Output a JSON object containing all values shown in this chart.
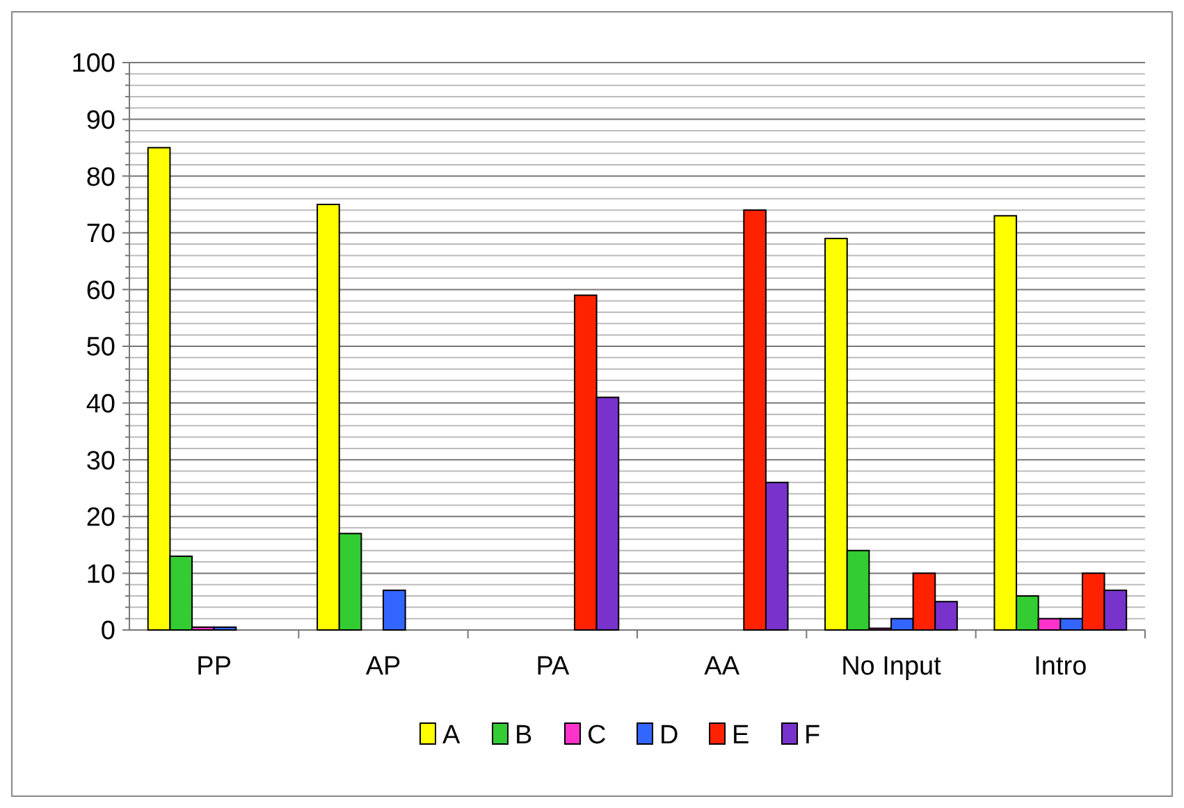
{
  "chart_data": {
    "type": "bar",
    "categories": [
      "PP",
      "AP",
      "PA",
      "AA",
      "No Input",
      "Intro"
    ],
    "series": [
      {
        "name": "A",
        "color": "#ffff00",
        "values": [
          85,
          75,
          0,
          0,
          69,
          73
        ]
      },
      {
        "name": "B",
        "color": "#33cc33",
        "values": [
          13,
          17,
          0,
          0,
          14,
          6
        ]
      },
      {
        "name": "C",
        "color": "#ff33cc",
        "values": [
          0.5,
          null,
          0,
          0,
          0.3,
          2
        ]
      },
      {
        "name": "D",
        "color": "#3366ff",
        "values": [
          0.5,
          7,
          0,
          0,
          2,
          2
        ]
      },
      {
        "name": "E",
        "color": "#ff2200",
        "values": [
          0,
          0,
          59,
          74,
          10,
          10
        ]
      },
      {
        "name": "F",
        "color": "#7733cc",
        "values": [
          0,
          0,
          41,
          26,
          5,
          7
        ]
      }
    ],
    "ylim": [
      0,
      100
    ],
    "yticks": [
      0,
      {
        "value": 2,
        "label": null
      },
      {
        "value": 4,
        "label": null
      },
      {
        "value": 6,
        "label": null
      },
      {
        "value": 8,
        "label": null
      },
      10,
      {
        "value": 12,
        "label": null
      },
      {
        "value": 14,
        "label": null
      },
      {
        "value": 16,
        "label": null
      },
      {
        "value": 18,
        "label": null
      },
      20,
      {
        "value": 22,
        "label": null
      },
      {
        "value": 24,
        "label": null
      },
      {
        "value": 26,
        "label": null
      },
      {
        "value": 28,
        "label": null
      },
      30,
      {
        "value": 32,
        "label": null
      },
      {
        "value": 34,
        "label": null
      },
      {
        "value": 36,
        "label": null
      },
      {
        "value": 38,
        "label": null
      },
      40,
      {
        "value": 42,
        "label": null
      },
      {
        "value": 44,
        "label": null
      },
      {
        "value": 46,
        "label": null
      },
      {
        "value": 48,
        "label": null
      },
      50,
      {
        "value": 52,
        "label": null
      },
      {
        "value": 54,
        "label": null
      },
      {
        "value": 56,
        "label": null
      },
      {
        "value": 58,
        "label": null
      },
      60,
      {
        "value": 62,
        "label": null
      },
      {
        "value": 64,
        "label": null
      },
      {
        "value": 66,
        "label": null
      },
      {
        "value": 68,
        "label": null
      },
      70,
      {
        "value": 72,
        "label": null
      },
      {
        "value": 74,
        "label": null
      },
      {
        "value": 76,
        "label": null
      },
      {
        "value": 78,
        "label": null
      },
      80,
      {
        "value": 82,
        "label": null
      },
      {
        "value": 84,
        "label": null
      },
      {
        "value": 86,
        "label": null
      },
      {
        "value": 88,
        "label": null
      },
      90,
      {
        "value": 92,
        "label": null
      },
      {
        "value": 94,
        "label": null
      },
      {
        "value": 96,
        "label": null
      },
      {
        "value": 98,
        "label": null
      },
      100
    ],
    "grid": true,
    "legend": "bottom"
  }
}
